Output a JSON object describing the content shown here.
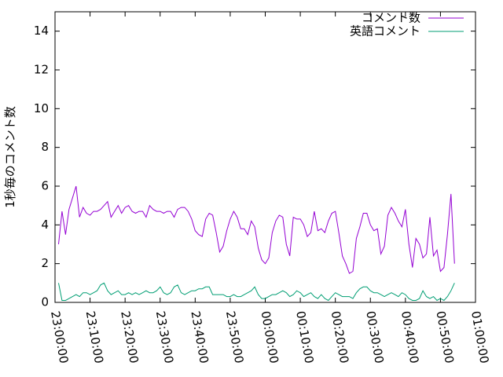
{
  "chart_data": {
    "type": "line",
    "ylabel": "1秒毎のコメント数",
    "x": [
      "23:01:00",
      "23:02:00",
      "23:03:00",
      "23:04:00",
      "23:05:00",
      "23:06:00",
      "23:07:00",
      "23:08:00",
      "23:09:00",
      "23:10:00",
      "23:11:00",
      "23:12:00",
      "23:13:00",
      "23:14:00",
      "23:15:00",
      "23:16:00",
      "23:17:00",
      "23:18:00",
      "23:19:00",
      "23:20:00",
      "23:21:00",
      "23:22:00",
      "23:23:00",
      "23:24:00",
      "23:25:00",
      "23:26:00",
      "23:27:00",
      "23:28:00",
      "23:29:00",
      "23:30:00",
      "23:31:00",
      "23:32:00",
      "23:33:00",
      "23:34:00",
      "23:35:00",
      "23:36:00",
      "23:37:00",
      "23:38:00",
      "23:39:00",
      "23:40:00",
      "23:41:00",
      "23:42:00",
      "23:43:00",
      "23:44:00",
      "23:45:00",
      "23:46:00",
      "23:47:00",
      "23:48:00",
      "23:49:00",
      "23:50:00",
      "23:51:00",
      "23:52:00",
      "23:53:00",
      "23:54:00",
      "23:55:00",
      "23:56:00",
      "23:57:00",
      "23:58:00",
      "23:59:00",
      "00:00:00",
      "00:01:00",
      "00:02:00",
      "00:03:00",
      "00:04:00",
      "00:05:00",
      "00:06:00",
      "00:07:00",
      "00:08:00",
      "00:09:00",
      "00:10:00",
      "00:11:00",
      "00:12:00",
      "00:13:00",
      "00:14:00",
      "00:15:00",
      "00:16:00",
      "00:17:00",
      "00:18:00",
      "00:19:00",
      "00:20:00",
      "00:21:00",
      "00:22:00",
      "00:23:00",
      "00:24:00",
      "00:25:00",
      "00:26:00",
      "00:27:00",
      "00:28:00",
      "00:29:00",
      "00:30:00",
      "00:31:00",
      "00:32:00",
      "00:33:00",
      "00:34:00",
      "00:35:00",
      "00:36:00",
      "00:37:00",
      "00:38:00",
      "00:39:00",
      "00:40:00",
      "00:41:00",
      "00:42:00",
      "00:43:00",
      "00:44:00",
      "00:45:00",
      "00:46:00",
      "00:47:00",
      "00:48:00",
      "00:49:00",
      "00:50:00",
      "00:51:00",
      "00:52:00",
      "00:53:00",
      "00:54:00"
    ],
    "series": [
      {
        "name": "コメント数",
        "color": "#9400d3",
        "values": [
          3.0,
          4.7,
          3.5,
          4.8,
          5.4,
          6.0,
          4.4,
          4.9,
          4.6,
          4.5,
          4.7,
          4.7,
          4.8,
          5.0,
          5.2,
          4.4,
          4.7,
          5.0,
          4.6,
          4.9,
          5.0,
          4.7,
          4.6,
          4.7,
          4.7,
          4.4,
          5.0,
          4.8,
          4.7,
          4.7,
          4.6,
          4.7,
          4.7,
          4.4,
          4.8,
          4.9,
          4.9,
          4.7,
          4.3,
          3.7,
          3.5,
          3.4,
          4.3,
          4.6,
          4.5,
          3.6,
          2.6,
          2.9,
          3.7,
          4.3,
          4.7,
          4.4,
          3.8,
          3.8,
          3.5,
          4.2,
          3.9,
          2.8,
          2.2,
          2.0,
          2.3,
          3.6,
          4.2,
          4.5,
          4.4,
          3.0,
          2.4,
          4.4,
          4.3,
          4.3,
          4.0,
          3.4,
          3.6,
          4.7,
          3.7,
          3.8,
          3.6,
          4.2,
          4.6,
          4.7,
          3.6,
          2.4,
          2.0,
          1.5,
          1.6,
          3.3,
          3.9,
          4.6,
          4.6,
          4.0,
          3.7,
          3.8,
          2.5,
          2.9,
          4.5,
          4.9,
          4.6,
          4.2,
          3.9,
          4.8,
          3.0,
          1.8,
          3.3,
          3.0,
          2.3,
          2.5,
          4.4,
          2.4,
          2.7,
          1.6,
          1.8,
          3.5,
          5.6,
          2.0
        ]
      },
      {
        "name": "英語コメント",
        "color": "#009e73",
        "values": [
          1.0,
          0.1,
          0.1,
          0.2,
          0.3,
          0.4,
          0.3,
          0.5,
          0.5,
          0.4,
          0.5,
          0.6,
          0.9,
          1.0,
          0.6,
          0.4,
          0.5,
          0.6,
          0.4,
          0.4,
          0.5,
          0.4,
          0.5,
          0.4,
          0.5,
          0.6,
          0.5,
          0.5,
          0.6,
          0.8,
          0.5,
          0.4,
          0.5,
          0.8,
          0.9,
          0.5,
          0.4,
          0.5,
          0.6,
          0.6,
          0.7,
          0.7,
          0.8,
          0.8,
          0.4,
          0.4,
          0.4,
          0.4,
          0.3,
          0.3,
          0.4,
          0.3,
          0.3,
          0.4,
          0.5,
          0.6,
          0.8,
          0.4,
          0.2,
          0.2,
          0.3,
          0.4,
          0.4,
          0.5,
          0.6,
          0.5,
          0.3,
          0.4,
          0.6,
          0.5,
          0.3,
          0.4,
          0.5,
          0.3,
          0.2,
          0.4,
          0.2,
          0.1,
          0.3,
          0.5,
          0.4,
          0.3,
          0.3,
          0.3,
          0.2,
          0.5,
          0.7,
          0.8,
          0.8,
          0.6,
          0.5,
          0.5,
          0.4,
          0.3,
          0.4,
          0.5,
          0.4,
          0.3,
          0.5,
          0.4,
          0.2,
          0.1,
          0.1,
          0.2,
          0.6,
          0.3,
          0.2,
          0.3,
          0.1,
          0.2,
          0.1,
          0.3,
          0.6,
          1.0
        ]
      }
    ],
    "xlim": [
      "23:00:00",
      "01:00:00"
    ],
    "xticks": [
      "23:00:00",
      "23:10:00",
      "23:20:00",
      "23:30:00",
      "23:40:00",
      "23:50:00",
      "00:00:00",
      "00:10:00",
      "00:20:00",
      "00:30:00",
      "00:40:00",
      "00:50:00",
      "01:00:00"
    ],
    "ylim": [
      0,
      15
    ],
    "yticks": [
      0,
      2,
      4,
      6,
      8,
      10,
      12,
      14
    ],
    "legend": "top-right"
  }
}
